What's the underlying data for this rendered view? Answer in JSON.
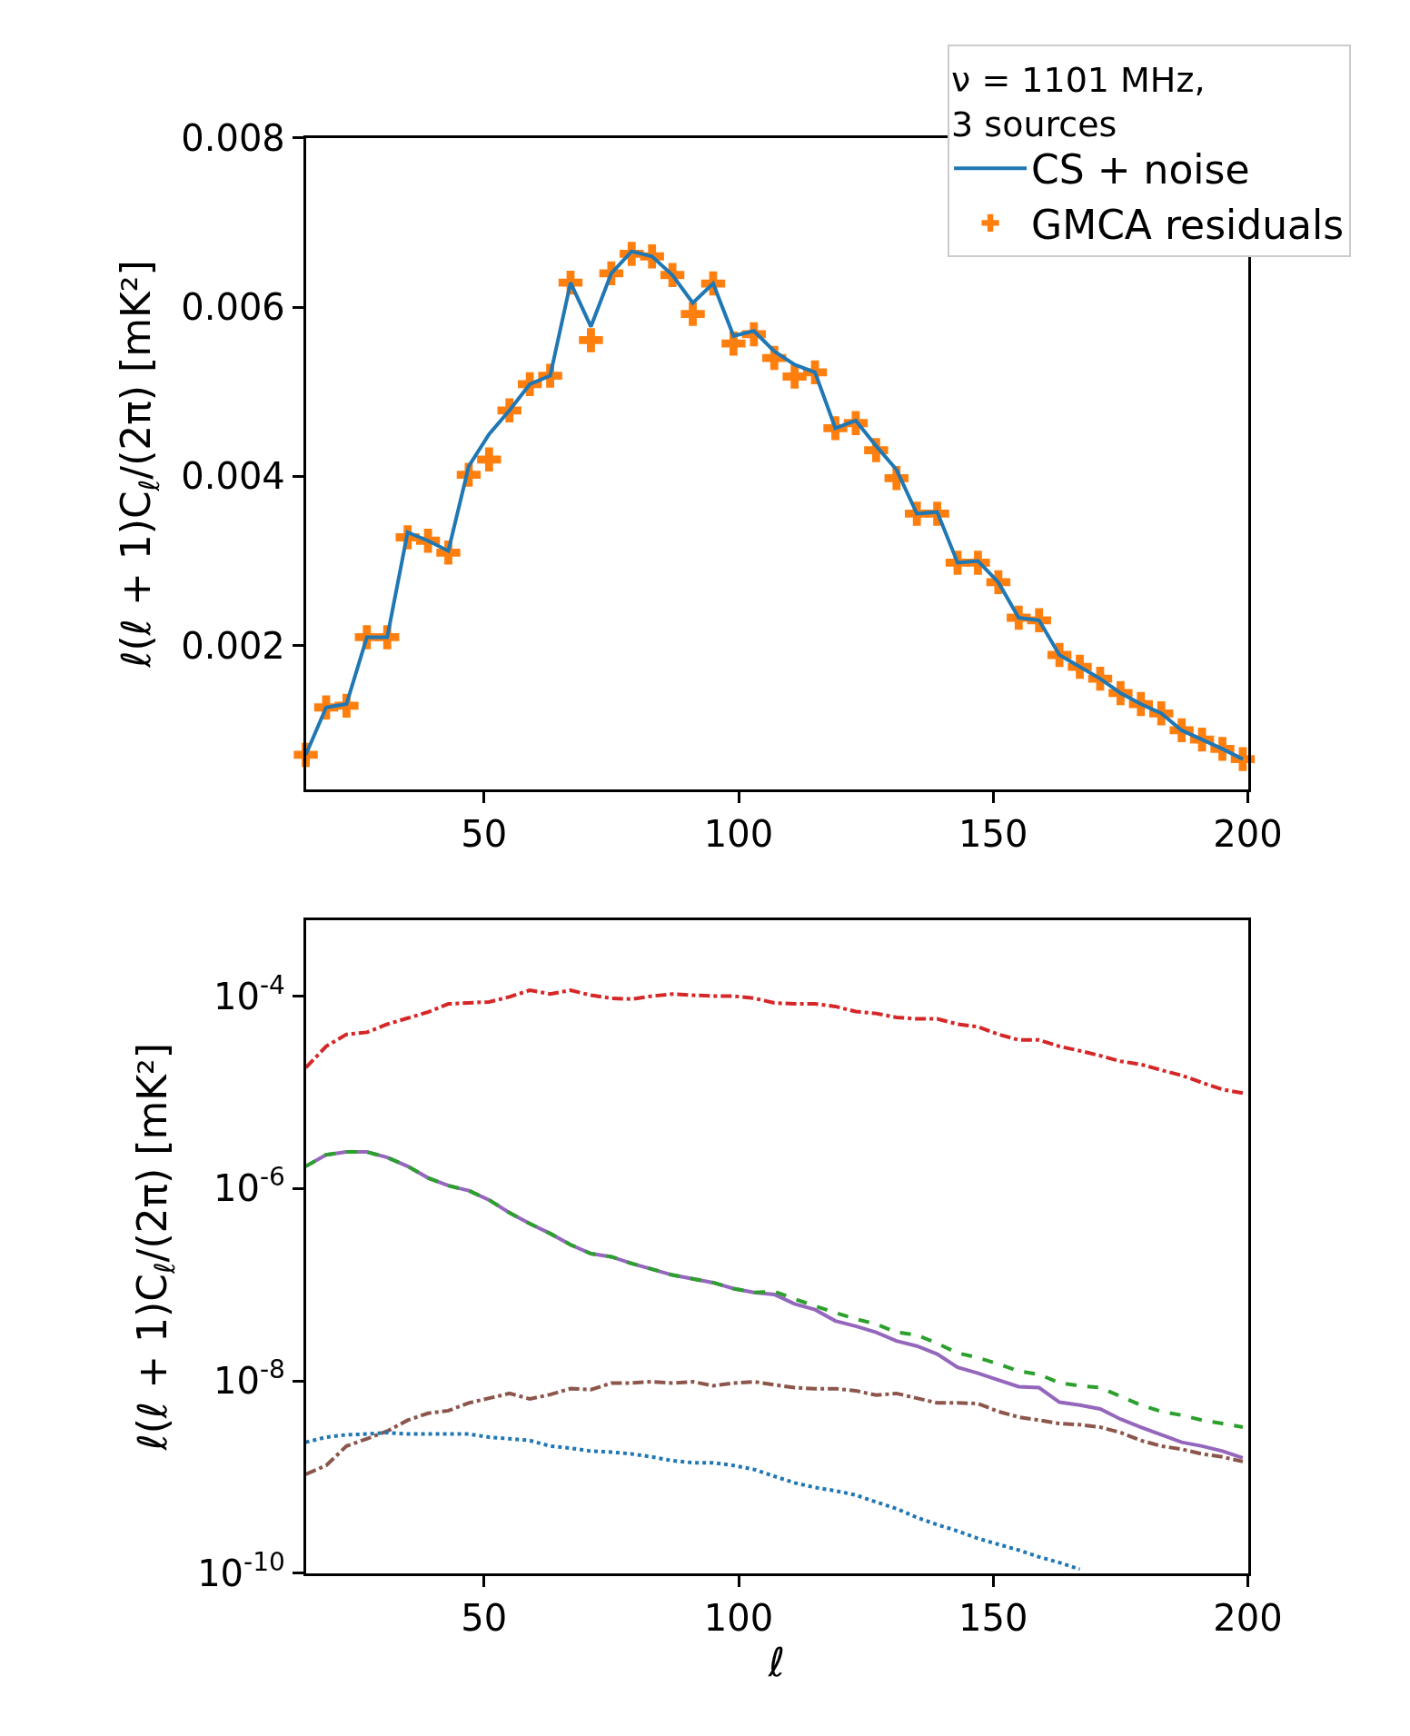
{
  "chart_data": [
    {
      "type": "line",
      "ylabel": "ℓ(ℓ + 1)C$_{ℓ}$/(2π) [mK²]",
      "legend_title": "ν = 1101 MHz,\n3 sources",
      "legend": "top right",
      "x": [
        15,
        19,
        23,
        27,
        31,
        35,
        39,
        43,
        47,
        51,
        55,
        59,
        63,
        67,
        71,
        75,
        79,
        83,
        87,
        91,
        95,
        99,
        103,
        107,
        111,
        115,
        119,
        123,
        127,
        131,
        135,
        139,
        143,
        147,
        151,
        155,
        159,
        163,
        167,
        171,
        175,
        179,
        183,
        187,
        191,
        195,
        199
      ],
      "xlim": [
        15,
        200
      ],
      "xticks": [
        50,
        100,
        150,
        200
      ],
      "ylim": [
        0.0003,
        0.008
      ],
      "yticks": [
        0.002,
        0.004,
        0.006,
        0.008
      ],
      "series": [
        {
          "name": "CS + noise",
          "type": "line",
          "color": "#1f77b4",
          "line_style": "solid",
          "values": [
            0.00071,
            0.00127,
            0.00131,
            0.0021,
            0.0021,
            0.00334,
            0.00324,
            0.00312,
            0.00412,
            0.0045,
            0.00478,
            0.00509,
            0.00519,
            0.00629,
            0.00577,
            0.0064,
            0.00666,
            0.0066,
            0.00638,
            0.00605,
            0.00628,
            0.00566,
            0.00572,
            0.00548,
            0.00532,
            0.00523,
            0.00457,
            0.00466,
            0.00436,
            0.00408,
            0.00356,
            0.00358,
            0.00298,
            0.003,
            0.00275,
            0.00233,
            0.0023,
            0.00189,
            0.00175,
            0.00161,
            0.00144,
            0.00131,
            0.0012,
            0.001,
            0.00089,
            0.00078,
            0.00066
          ]
        },
        {
          "name": "GMCA residuals",
          "type": "scatter",
          "color": "#ff7f0e",
          "marker": "cross",
          "values": [
            0.00071,
            0.00127,
            0.00129,
            0.0021,
            0.0021,
            0.00328,
            0.00324,
            0.0031,
            0.00402,
            0.0042,
            0.00478,
            0.00509,
            0.00519,
            0.00629,
            0.00561,
            0.0064,
            0.00663,
            0.0066,
            0.00638,
            0.00592,
            0.00628,
            0.00557,
            0.00568,
            0.0054,
            0.00518,
            0.00523,
            0.00457,
            0.00463,
            0.00431,
            0.00398,
            0.00356,
            0.00356,
            0.00298,
            0.00298,
            0.00275,
            0.00233,
            0.0023,
            0.00189,
            0.00175,
            0.00161,
            0.00144,
            0.00131,
            0.0012,
            0.001,
            0.00089,
            0.00078,
            0.00066
          ]
        }
      ]
    },
    {
      "type": "line",
      "xlabel": "ℓ",
      "ylabel": "ℓ(ℓ + 1)C$_{ℓ}$/(2π) [mK²]",
      "log": "y",
      "x": [
        15,
        19,
        23,
        27,
        31,
        35,
        39,
        43,
        47,
        51,
        55,
        59,
        63,
        67,
        71,
        75,
        79,
        83,
        87,
        91,
        95,
        99,
        103,
        107,
        111,
        115,
        119,
        123,
        127,
        131,
        135,
        139,
        143,
        147,
        151,
        155,
        159,
        163,
        167,
        171,
        175,
        179,
        183,
        187,
        191,
        195,
        199
      ],
      "xlim": [
        15,
        200
      ],
      "xticks": [
        50,
        100,
        150,
        200
      ],
      "ylim": [
        1e-10,
        0.00062
      ],
      "yticks": [
        {
          "value": 1e-10,
          "label": "10$^{-10}$"
        },
        {
          "value": 1e-08,
          "label": "10$^{-8}$"
        },
        {
          "value": 1e-06,
          "label": "10$^{-6}$"
        },
        {
          "value": 0.0001,
          "label": "10$^{-4}$"
        }
      ],
      "series": [
        {
          "color": "#d62728",
          "line_style": "dashdot",
          "values": [
            1.8e-05,
            3e-05,
            4e-05,
            4.2e-05,
            5.1e-05,
            5.9e-05,
            6.8e-05,
            8.3e-05,
            8.5e-05,
            8.7e-05,
            9.8e-05,
            0.000115,
            0.000105,
            0.000115,
            0.000102,
            9.5e-05,
            9.3e-05,
            0.0001,
            0.000105,
            0.000102,
            0.0001,
            0.0001,
            9.5e-05,
            8.5e-05,
            8.3e-05,
            8.3e-05,
            7.8e-05,
            6.9e-05,
            6.6e-05,
            6e-05,
            5.8e-05,
            5.8e-05,
            5.1e-05,
            4.8e-05,
            4e-05,
            3.5e-05,
            3.5e-05,
            3e-05,
            2.7e-05,
            2.4e-05,
            2.1e-05,
            1.95e-05,
            1.7e-05,
            1.5e-05,
            1.26e-05,
            1.07e-05,
            9.8e-06
          ]
        },
        {
          "color": "#9467bd",
          "line_style": "solid",
          "values": [
            1.7e-06,
            2.24e-06,
            2.4e-06,
            2.4e-06,
            2.1e-06,
            1.7e-06,
            1.29e-06,
            1.07e-06,
            9.5e-07,
            7.6e-07,
            5.6e-07,
            4.3e-07,
            3.4e-07,
            2.6e-07,
            2.1e-07,
            1.95e-07,
            1.66e-07,
            1.45e-07,
            1.26e-07,
            1.15e-07,
            1.05e-07,
            9.1e-08,
            8.3e-08,
            7.9e-08,
            6.3e-08,
            5.5e-08,
            4.2e-08,
            3.7e-08,
            3.2e-08,
            2.6e-08,
            2.3e-08,
            1.9e-08,
            1.38e-08,
            1.2e-08,
            1.02e-08,
            8.7e-09,
            8.5e-09,
            6e-09,
            5.6e-09,
            5.1e-09,
            4e-09,
            3.3e-09,
            2.75e-09,
            2.3e-09,
            2.1e-09,
            1.86e-09,
            1.58e-09
          ]
        },
        {
          "color": "#2ca02c",
          "line_style": "dashed",
          "values": [
            1.7e-06,
            2.24e-06,
            2.4e-06,
            2.4e-06,
            2.1e-06,
            1.7e-06,
            1.29e-06,
            1.07e-06,
            9.5e-07,
            7.6e-07,
            5.6e-07,
            4.3e-07,
            3.4e-07,
            2.6e-07,
            2.1e-07,
            1.95e-07,
            1.66e-07,
            1.45e-07,
            1.26e-07,
            1.15e-07,
            1.05e-07,
            9.1e-08,
            8.3e-08,
            8.5e-08,
            7.1e-08,
            6e-08,
            5.1e-08,
            4.4e-08,
            3.9e-08,
            3.2e-08,
            3e-08,
            2.45e-08,
            1.95e-08,
            1.74e-08,
            1.5e-08,
            1.26e-08,
            1.17e-08,
            9.5e-09,
            8.9e-09,
            8.5e-09,
            6.9e-09,
            5.6e-09,
            4.8e-09,
            4.4e-09,
            3.9e-09,
            3.6e-09,
            3.3e-09
          ]
        },
        {
          "color": "#8c564b",
          "line_style": "dashdot",
          "values": [
            1.07e-09,
            1.32e-09,
            2.1e-09,
            2.5e-09,
            3e-09,
            3.9e-09,
            4.6e-09,
            4.9e-09,
            5.9e-09,
            6.6e-09,
            7.4e-09,
            6.5e-09,
            7.2e-09,
            8.3e-09,
            8.1e-09,
            9.5e-09,
            9.5e-09,
            9.8e-09,
            9.5e-09,
            9.8e-09,
            8.9e-09,
            9.5e-09,
            9.8e-09,
            9.1e-09,
            8.5e-09,
            8.3e-09,
            8.3e-09,
            7.9e-09,
            7.1e-09,
            7.4e-09,
            6.6e-09,
            5.9e-09,
            5.9e-09,
            5.8e-09,
            4.8e-09,
            4.2e-09,
            3.9e-09,
            3.6e-09,
            3.5e-09,
            3.3e-09,
            2.9e-09,
            2.4e-09,
            2.1e-09,
            1.95e-09,
            1.74e-09,
            1.62e-09,
            1.45e-09
          ]
        },
        {
          "color": "#1f77b4",
          "line_style": "dotted",
          "values": [
            2.3e-09,
            2.6e-09,
            2.75e-09,
            2.8e-09,
            2.9e-09,
            2.8e-09,
            2.8e-09,
            2.8e-09,
            2.8e-09,
            2.6e-09,
            2.5e-09,
            2.4e-09,
            2.1e-09,
            2e-09,
            1.86e-09,
            1.82e-09,
            1.74e-09,
            1.62e-09,
            1.48e-09,
            1.41e-09,
            1.41e-09,
            1.32e-09,
            1.2e-09,
            1.02e-09,
            8.7e-10,
            7.8e-10,
            7.2e-10,
            6.5e-10,
            5.5e-10,
            4.7e-10,
            3.8e-10,
            3.2e-10,
            2.75e-10,
            2.3e-10,
            2e-10,
            1.74e-10,
            1.48e-10,
            1.29e-10,
            1.1e-10,
            null,
            null,
            null,
            null,
            null,
            null,
            null,
            null
          ]
        }
      ]
    }
  ]
}
